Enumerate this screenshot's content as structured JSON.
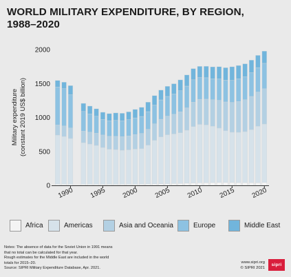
{
  "title_lines": [
    "WORLD MILITARY EXPENDITURE, BY REGION,",
    "1988–2020"
  ],
  "chart_data": {
    "type": "bar",
    "stacked": true,
    "categories": [
      "1988",
      "1989",
      "1990",
      "1991",
      "1992",
      "1993",
      "1994",
      "1995",
      "1996",
      "1997",
      "1998",
      "1999",
      "2000",
      "2001",
      "2002",
      "2003",
      "2004",
      "2005",
      "2006",
      "2007",
      "2008",
      "2009",
      "2010",
      "2011",
      "2012",
      "2013",
      "2014",
      "2015",
      "2016",
      "2017",
      "2018",
      "2019",
      "2020"
    ],
    "x_tick_labels": [
      "1990",
      "1995",
      "2000",
      "2005",
      "2010",
      "2015",
      "2020"
    ],
    "ylabel_lines": [
      "Military expenditure",
      "(constant 2019 US$ billion)"
    ],
    "ylim": [
      0,
      2000
    ],
    "yticks": [
      0,
      500,
      1000,
      1500,
      2000
    ],
    "grid": false,
    "legend_position": "bottom",
    "series": [
      {
        "name": "Africa",
        "color": "#f4f4f4",
        "values": [
          20,
          20,
          20,
          null,
          18,
          18,
          18,
          17,
          17,
          17,
          17,
          18,
          19,
          20,
          21,
          22,
          24,
          25,
          27,
          29,
          32,
          35,
          38,
          40,
          41,
          43,
          44,
          42,
          41,
          41,
          40,
          40,
          43
        ]
      },
      {
        "name": "Americas",
        "color": "#d6e2ea",
        "values": [
          720,
          700,
          670,
          null,
          610,
          590,
          570,
          540,
          515,
          510,
          500,
          505,
          515,
          520,
          570,
          640,
          690,
          720,
          730,
          745,
          780,
          830,
          860,
          850,
          830,
          800,
          760,
          740,
          740,
          750,
          780,
          830,
          860
        ]
      },
      {
        "name": "Asia and Oceania",
        "color": "#b3d0e3",
        "values": [
          150,
          155,
          155,
          null,
          170,
          175,
          180,
          185,
          190,
          195,
          200,
          205,
          215,
          225,
          235,
          245,
          260,
          275,
          290,
          310,
          330,
          360,
          370,
          380,
          390,
          410,
          425,
          440,
          455,
          470,
          490,
          505,
          520
        ]
      },
      {
        "name": "Europe",
        "color": "#8dc2e2",
        "values": [
          560,
          550,
          490,
          null,
          290,
          270,
          250,
          230,
          230,
          235,
          235,
          240,
          245,
          250,
          260,
          275,
          285,
          290,
          300,
          310,
          320,
          330,
          320,
          315,
          310,
          315,
          320,
          325,
          335,
          340,
          350,
          360,
          375
        ]
      },
      {
        "name": "Middle East",
        "color": "#71b5dc",
        "values": [
          95,
          95,
          135,
          null,
          120,
          115,
          110,
          105,
          105,
          110,
          110,
          115,
          125,
          135,
          140,
          140,
          145,
          150,
          150,
          160,
          165,
          165,
          165,
          170,
          175,
          180,
          185,
          200,
          195,
          190,
          185,
          180,
          180
        ]
      }
    ]
  },
  "notes": [
    "Notes: The absence of data for the Soviet Union in 1991 means",
    "that no total can be calculated for that year.",
    "Rough estimates for the Middle East are included in the world",
    "totals for 2015–20.",
    "Source: SIPRI Military Expenditure Database, Apr. 2021."
  ],
  "credits": [
    "www.sipri.org",
    "© SIPRI 2021"
  ],
  "logo_text": "sipri"
}
